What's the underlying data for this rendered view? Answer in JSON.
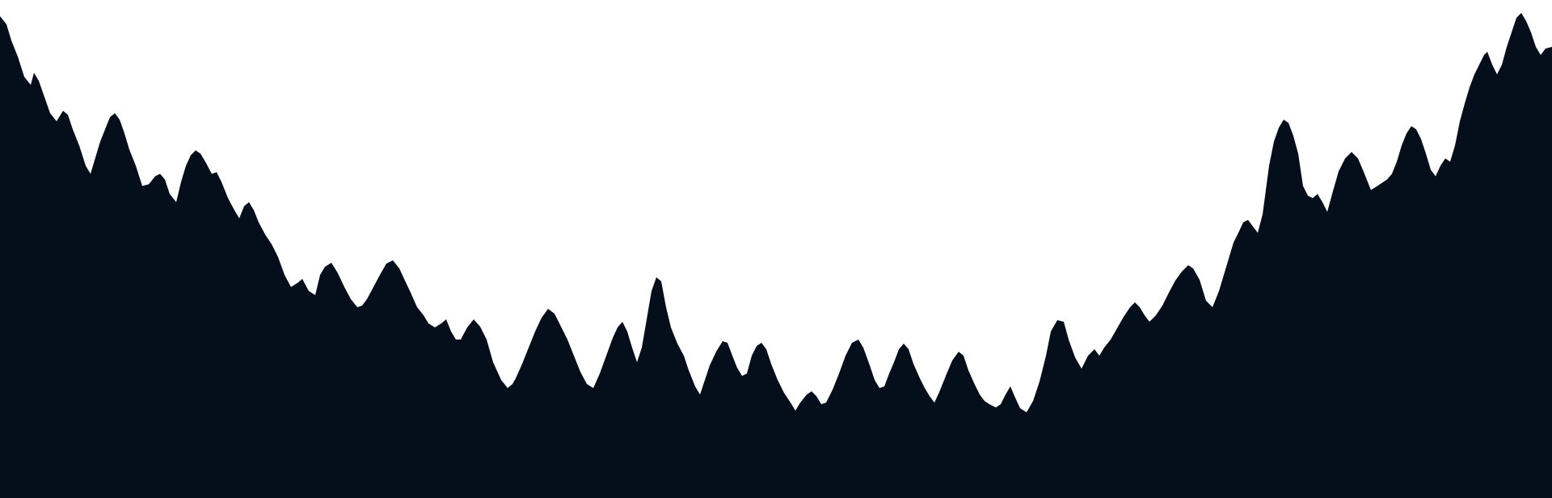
{
  "scene": {
    "subject": "forest-treeline-silhouette",
    "colors": {
      "sky": "#ffffff",
      "trees": "#050f1b",
      "trees_highlight": "#0b1a2e"
    }
  }
}
